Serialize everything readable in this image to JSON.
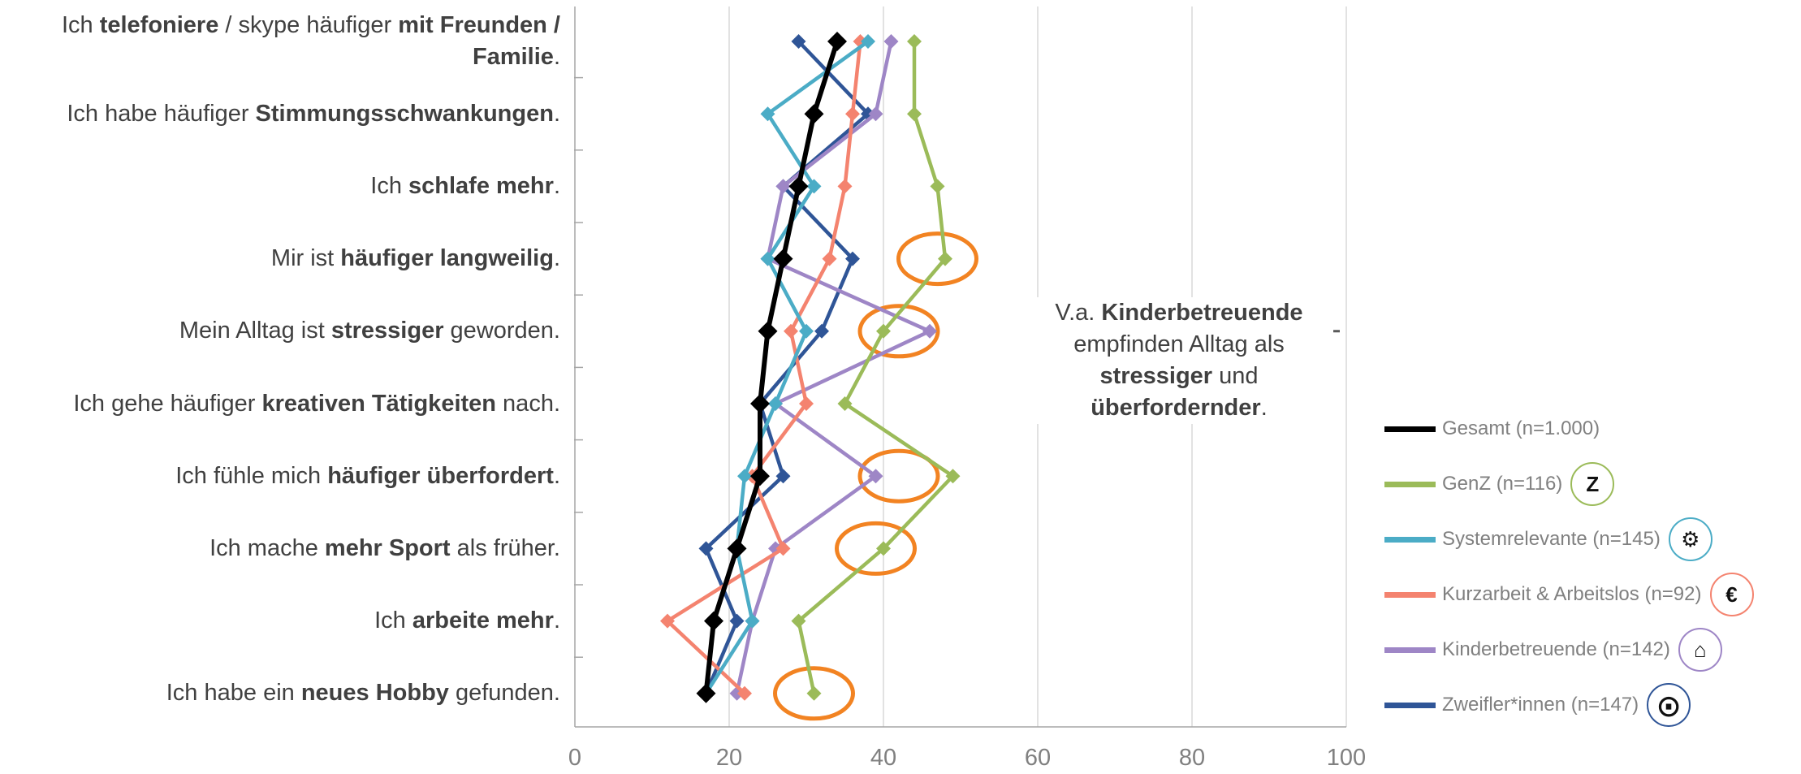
{
  "categories": [
    {
      "parts": [
        {
          "t": "Ich ",
          "b": false
        },
        {
          "t": "telefoniere",
          "b": true
        },
        {
          "t": " / skype häufiger ",
          "b": false
        },
        {
          "t": "mit Freunden / Familie",
          "b": true
        },
        {
          "t": ".",
          "b": false
        }
      ]
    },
    {
      "parts": [
        {
          "t": "Ich habe häufiger ",
          "b": false
        },
        {
          "t": "Stimmungsschwankungen",
          "b": true
        },
        {
          "t": ".",
          "b": false
        }
      ]
    },
    {
      "parts": [
        {
          "t": "Ich ",
          "b": false
        },
        {
          "t": "schlafe mehr",
          "b": true
        },
        {
          "t": ".",
          "b": false
        }
      ]
    },
    {
      "parts": [
        {
          "t": "Mir ist ",
          "b": false
        },
        {
          "t": "häufiger langweilig",
          "b": true
        },
        {
          "t": ".",
          "b": false
        }
      ]
    },
    {
      "parts": [
        {
          "t": "Mein Alltag ist ",
          "b": false
        },
        {
          "t": "stressiger",
          "b": true
        },
        {
          "t": " geworden.",
          "b": false
        }
      ]
    },
    {
      "parts": [
        {
          "t": "Ich gehe häufiger ",
          "b": false
        },
        {
          "t": "kreativen Tätigkeiten",
          "b": true
        },
        {
          "t": " nach.",
          "b": false
        }
      ]
    },
    {
      "parts": [
        {
          "t": "Ich fühle mich ",
          "b": false
        },
        {
          "t": "häufiger überfordert",
          "b": true
        },
        {
          "t": ".",
          "b": false
        }
      ]
    },
    {
      "parts": [
        {
          "t": "Ich mache ",
          "b": false
        },
        {
          "t": "mehr Sport",
          "b": true
        },
        {
          "t": " als früher.",
          "b": false
        }
      ]
    },
    {
      "parts": [
        {
          "t": "Ich ",
          "b": false
        },
        {
          "t": "arbeite mehr",
          "b": true
        },
        {
          "t": ".",
          "b": false
        }
      ]
    },
    {
      "parts": [
        {
          "t": "Ich habe ein ",
          "b": false
        },
        {
          "t": "neues Hobby",
          "b": true
        },
        {
          "t": " gefunden.",
          "b": false
        }
      ]
    }
  ],
  "callout": {
    "parts": [
      {
        "t": "V.a. ",
        "b": false
      },
      {
        "t": "Kinderbetreuende",
        "b": true
      },
      {
        "t": "\nempfinden Alltag als\n",
        "b": false
      },
      {
        "t": "stressiger",
        "b": true
      },
      {
        "t": " und\n",
        "b": false
      },
      {
        "t": "überfordernder",
        "b": true
      },
      {
        "t": ".",
        "b": false
      }
    ],
    "points_to_category": 4
  },
  "chart_data": {
    "type": "line",
    "orientation": "horizontal-values",
    "xlim": [
      0,
      100
    ],
    "xticks": [
      0,
      20,
      40,
      60,
      80,
      100
    ],
    "grid": "vertical",
    "legend_position": "right",
    "series": [
      {
        "name": "Gesamt (n=1.000)",
        "color": "#000000",
        "values": [
          34,
          31,
          29,
          27,
          25,
          24,
          24,
          21,
          18,
          17
        ]
      },
      {
        "name": "GenZ (n=116)",
        "color": "#9BBB59",
        "icon": "Z",
        "values": [
          44,
          44,
          47,
          48,
          40,
          35,
          49,
          40,
          29,
          31
        ]
      },
      {
        "name": "Systemrelevante (n=145)",
        "color": "#4BACC6",
        "icon": "gears-icon",
        "values": [
          38,
          25,
          31,
          25,
          30,
          26,
          22,
          21,
          23,
          17
        ]
      },
      {
        "name": "Kurzarbeit & Arbeitslos (n=92)",
        "color": "#F4836F",
        "icon": "euro-down-icon",
        "values": [
          37,
          36,
          35,
          33,
          28,
          30,
          23,
          27,
          12,
          22
        ]
      },
      {
        "name": "Kinderbetreuende (n=142)",
        "color": "#9E86C6",
        "icon": "family-home-icon",
        "values": [
          41,
          39,
          27,
          25,
          46,
          26,
          39,
          26,
          23,
          21
        ]
      },
      {
        "name": "Zweifler*innen (n=147)",
        "color": "#2F5597",
        "icon": "skeptical-face-icon",
        "values": [
          29,
          38,
          27,
          36,
          32,
          24,
          27,
          17,
          21,
          17
        ]
      }
    ],
    "highlights": [
      {
        "category": 3,
        "x": 47
      },
      {
        "category": 4,
        "x": 42
      },
      {
        "category": 6,
        "x": 42
      },
      {
        "category": 7,
        "x": 39
      },
      {
        "category": 9,
        "x": 31
      }
    ],
    "highlight_color": "#F28322"
  }
}
